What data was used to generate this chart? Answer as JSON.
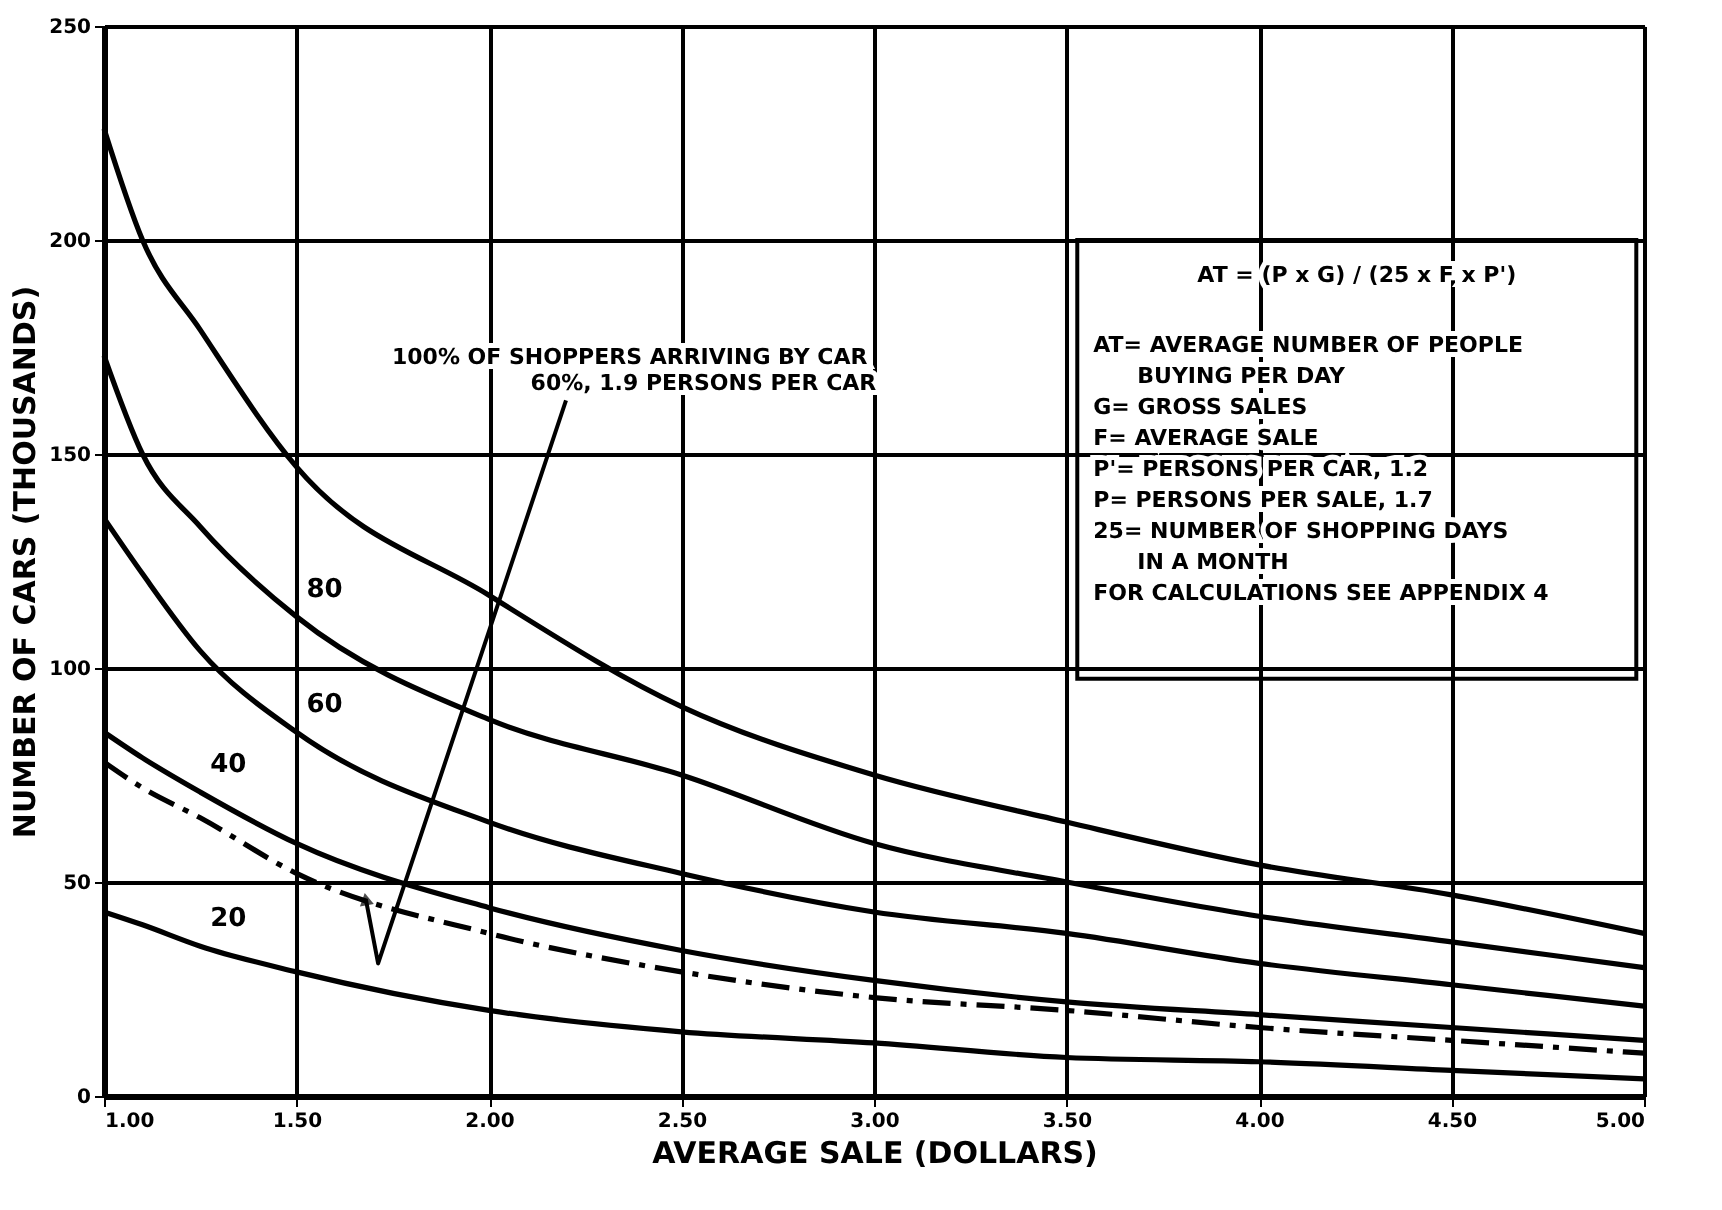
{
  "chart_data": {
    "type": "line",
    "xlabel": "AVERAGE SALE (DOLLARS)",
    "ylabel": "NUMBER OF CARS (THOUSANDS)",
    "x": [
      1.0,
      1.1,
      1.25,
      1.5,
      2.0,
      2.5,
      3.0,
      3.5,
      4.0,
      4.5,
      5.0
    ],
    "series": [
      {
        "color": "#000000",
        "line_style": "solid",
        "values": [
          226,
          200,
          179,
          147,
          117,
          91,
          75,
          64,
          54,
          47,
          38
        ]
      },
      {
        "name": "80",
        "color": "#000000",
        "line_style": "solid",
        "values": [
          173,
          150,
          133,
          112,
          88,
          75,
          59,
          50,
          42,
          36,
          30
        ]
      },
      {
        "name": "60",
        "color": "#000000",
        "line_style": "solid",
        "values": [
          135,
          122,
          104,
          85,
          64,
          52,
          43,
          38,
          31,
          26,
          21
        ]
      },
      {
        "name": "40",
        "color": "#000000",
        "line_style": "solid",
        "values": [
          85,
          79,
          71,
          59,
          44,
          34,
          27,
          22,
          19,
          16,
          13
        ]
      },
      {
        "color": "#000000",
        "line_style": "dashed",
        "values": [
          78,
          72,
          65,
          52,
          38,
          29,
          23,
          20,
          16,
          13,
          10
        ]
      },
      {
        "name": "20",
        "color": "#000000",
        "line_style": "solid",
        "values": [
          43,
          40,
          35,
          29,
          20,
          15,
          12.4,
          9,
          8,
          6,
          4
        ]
      }
    ],
    "xlim": [
      1.0,
      5.0
    ],
    "xticks": [
      {
        "value": 1.0,
        "label": "1.00"
      },
      {
        "value": 1.5,
        "label": "1.50"
      },
      {
        "value": 2.0,
        "label": "2.00"
      },
      {
        "value": 2.5,
        "label": "2.50"
      },
      {
        "value": 3.0,
        "label": "3.00"
      },
      {
        "value": 3.5,
        "label": "3.50"
      },
      {
        "value": 4.0,
        "label": "4.00"
      },
      {
        "value": 4.5,
        "label": "4.50"
      },
      {
        "value": 5.0,
        "label": "5.00"
      }
    ],
    "ylim": [
      0,
      250
    ],
    "yticks": [
      0,
      50,
      100,
      150,
      200,
      250
    ],
    "grid": true,
    "annotations": [
      "100% OF SHOPPERS ARRIVING BY CAR",
      {
        "text": "60%, 1.9 PERSONS PER CAR",
        "x": 1.68,
        "y": 46
      },
      "AT = (P x G) / (25 x F x P')",
      "AT= AVERAGE NUMBER OF PEOPLE",
      "BUYING PER DAY",
      "G= GROSS SALES",
      "F= AVERAGE SALE",
      "P'= PERSONS PER CAR, 1.2",
      "P= PERSONS PER SALE, 1.7",
      "25= NUMBER OF SHOPPING DAYS",
      "IN A MONTH",
      "FOR CALCULATIONS SEE APPENDIX 4"
    ]
  }
}
